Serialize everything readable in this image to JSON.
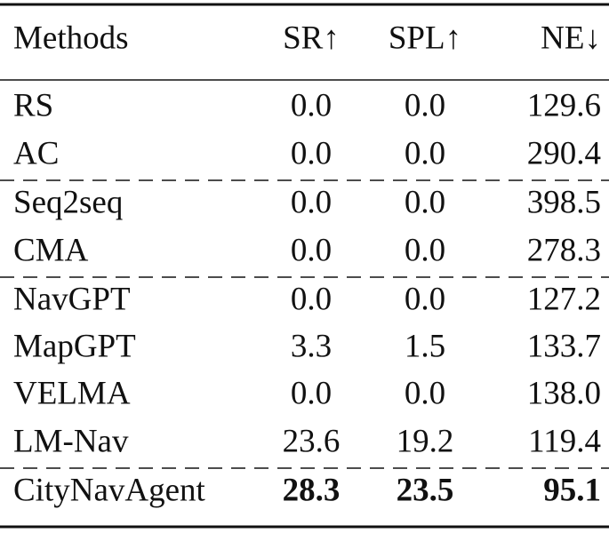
{
  "table": {
    "header": [
      "Methods",
      "SR↑",
      "SPL↑",
      "NE↓"
    ],
    "rows": [
      [
        "RS",
        "0.0",
        "0.0",
        "129.6"
      ],
      [
        "AC",
        "0.0",
        "0.0",
        "290.4"
      ],
      [
        "Seq2seq",
        "0.0",
        "0.0",
        "398.5"
      ],
      [
        "CMA",
        "0.0",
        "0.0",
        "278.3"
      ],
      [
        "NavGPT",
        "0.0",
        "0.0",
        "127.2"
      ],
      [
        "MapGPT",
        "3.3",
        "1.5",
        "133.7"
      ],
      [
        "VELMA",
        "0.0",
        "0.0",
        "138.0"
      ],
      [
        "LM-Nav",
        "23.6",
        "19.2",
        "119.4"
      ],
      [
        "CityNavAgent",
        "28.3",
        "23.5",
        "95.1"
      ]
    ]
  }
}
